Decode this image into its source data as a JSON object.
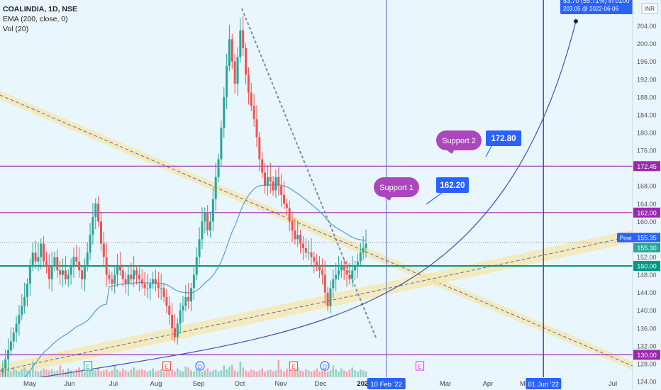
{
  "chart_data": {
    "type": "candlestick",
    "symbol": "COALINDIA, 1D, NSE",
    "indicators": [
      "EMA (200, close, 0)",
      "Vol (20)"
    ],
    "currency": "INR",
    "ylim": [
      124,
      206
    ],
    "y_ticks": [
      "124.00",
      "128.00",
      "132.00",
      "136.00",
      "140.00",
      "144.00",
      "148.00",
      "152.00",
      "156.00",
      "160.00",
      "164.00",
      "168.00",
      "172.00",
      "176.00",
      "180.00",
      "184.00",
      "188.00",
      "192.00",
      "196.00",
      "200.00",
      "204.00"
    ],
    "x_ticks": [
      "May",
      "Jun",
      "Jul",
      "Aug",
      "Sep",
      "Oct",
      "Nov",
      "Dec",
      "2022",
      "Mar",
      "Apr",
      "May",
      "Jul"
    ],
    "x_tick_days": [
      0,
      31,
      61,
      92,
      123,
      153,
      184,
      214,
      245,
      304,
      335,
      365,
      426
    ],
    "price_levels": [
      {
        "value": 172.45,
        "label": "172.45",
        "color": "#9c27b0"
      },
      {
        "value": 162.0,
        "label": "162.00",
        "color": "#9c27b0"
      },
      {
        "value": 150.0,
        "label": "150.00",
        "color": "#009688"
      },
      {
        "value": 130.0,
        "label": "130.00",
        "color": "#9c27b0"
      }
    ],
    "current_tags": [
      {
        "value": 155.35,
        "label": "155.35",
        "prefix": "Post"
      },
      {
        "value": 155.3,
        "label": "155.30"
      }
    ],
    "annotations": [
      {
        "text": "Support 1",
        "target": "162.20"
      },
      {
        "text": "Support 2",
        "target": "172.80"
      }
    ],
    "projection": {
      "text_top": "53.70 (55.71%) in 0100",
      "text_bottom": "203.05 @ 2022-06-06"
    },
    "date_tags": [
      "10 Feb '22",
      "01 Jun '22"
    ],
    "event_markers": [
      "E",
      "E",
      "D",
      "E",
      "E",
      "D",
      "E"
    ],
    "ohlc_close_series": [
      126,
      127,
      129,
      131,
      133,
      135,
      137,
      139,
      141,
      143,
      146,
      150,
      153,
      151,
      152,
      155,
      151,
      150,
      147,
      150,
      152,
      149,
      148,
      149,
      147,
      148,
      150,
      152,
      151,
      149,
      147,
      150,
      153,
      157,
      161,
      164,
      160,
      155,
      152,
      148,
      147,
      146,
      148,
      150,
      149,
      147,
      146,
      148,
      147,
      149,
      148,
      147,
      146,
      145,
      145,
      146,
      147,
      146,
      145,
      145,
      143,
      141,
      139,
      136,
      134,
      137,
      140,
      141,
      143,
      142,
      145,
      148,
      152,
      156,
      160,
      162,
      158,
      160,
      165,
      170,
      174,
      181,
      188,
      195,
      201,
      196,
      191,
      197,
      203,
      199,
      193,
      189,
      186,
      183,
      179,
      174,
      171,
      168,
      170,
      169,
      167,
      170,
      168,
      166,
      164,
      163,
      160,
      158,
      156,
      157,
      155,
      154,
      153,
      153,
      152,
      151,
      150,
      149,
      148,
      144,
      141,
      145,
      147,
      148,
      149,
      150,
      149,
      148,
      147,
      149,
      150,
      151,
      153,
      154,
      155
    ],
    "volume_scale": [
      0.3,
      0.4,
      0.9,
      0.5,
      0.3,
      0.6,
      0.4,
      0.3,
      0.5,
      0.7,
      0.4,
      0.3,
      0.5,
      0.4,
      0.3,
      0.4,
      0.6,
      0.3,
      0.4,
      0.5
    ]
  }
}
